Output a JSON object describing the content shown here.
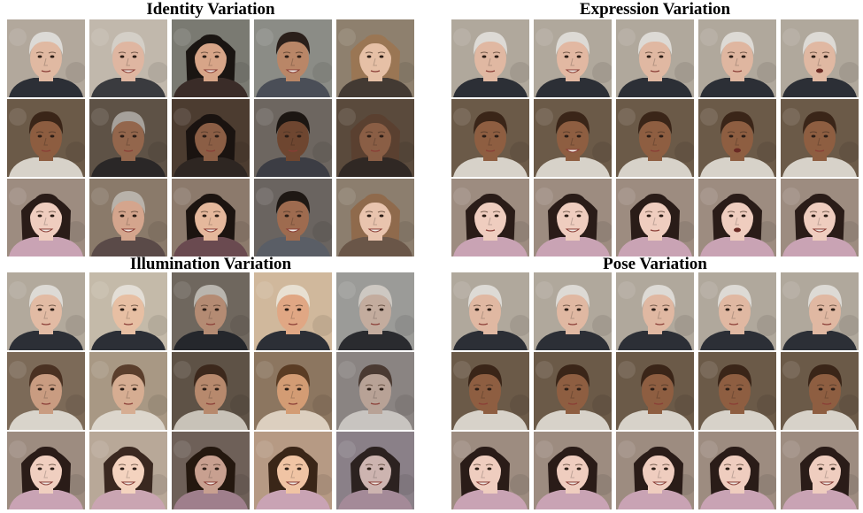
{
  "panels": [
    {
      "id": "identity",
      "title": "Identity Variation",
      "rows": [
        {
          "subject": "older man",
          "faces": [
            {
              "skin": "#e0b9a2",
              "hair": "#dcdad6",
              "bg": "#b2a89c",
              "shirt": "#2c2f36",
              "hairStyle": "short",
              "expr": "neutral"
            },
            {
              "skin": "#dfb6a1",
              "hair": "#d4cfc7",
              "bg": "#c1b8ac",
              "shirt": "#3a3b3f",
              "hairStyle": "short",
              "expr": "smile"
            },
            {
              "skin": "#d7a588",
              "hair": "#1a1512",
              "bg": "#7a7a72",
              "shirt": "#3a2c28",
              "hairStyle": "long",
              "expr": "smile"
            },
            {
              "skin": "#b98667",
              "hair": "#2a1f1a",
              "bg": "#8b8c86",
              "shirt": "#4a4e57",
              "hairStyle": "short",
              "expr": "smile"
            },
            {
              "skin": "#e6c0a6",
              "hair": "#9a7654",
              "bg": "#8e806e",
              "shirt": "#433a33",
              "hairStyle": "long",
              "expr": "neutral"
            }
          ]
        },
        {
          "subject": "young boy",
          "faces": [
            {
              "skin": "#8d5d40",
              "hair": "#3a2518",
              "bg": "#6b5a48",
              "shirt": "#d7d2c9",
              "hairStyle": "short",
              "expr": "neutral"
            },
            {
              "skin": "#93664c",
              "hair": "#a6a19b",
              "bg": "#5e5246",
              "shirt": "#2a2727",
              "hairStyle": "short",
              "expr": "neutral"
            },
            {
              "skin": "#8b5e45",
              "hair": "#1a1310",
              "bg": "#4c3c30",
              "shirt": "#2e2622",
              "hairStyle": "long",
              "expr": "neutral"
            },
            {
              "skin": "#6e4630",
              "hair": "#1c1612",
              "bg": "#6d6660",
              "shirt": "#3c3d44",
              "hairStyle": "short",
              "expr": "neutral"
            },
            {
              "skin": "#8a5e45",
              "hair": "#5a4030",
              "bg": "#5a4a3c",
              "shirt": "#302824",
              "hairStyle": "long",
              "expr": "neutral"
            }
          ]
        },
        {
          "subject": "young woman",
          "faces": [
            {
              "skin": "#efcdbf",
              "hair": "#2a1c18",
              "bg": "#9d8c80",
              "shirt": "#c9a3b4",
              "hairStyle": "long",
              "expr": "smile"
            },
            {
              "skin": "#d4a58d",
              "hair": "#b8b2aa",
              "bg": "#8a7a6a",
              "shirt": "#5a4a48",
              "hairStyle": "short",
              "expr": "smile"
            },
            {
              "skin": "#e5b89c",
              "hair": "#1c1410",
              "bg": "#8c7a6c",
              "shirt": "#6a4a50",
              "hairStyle": "long",
              "expr": "smile"
            },
            {
              "skin": "#9e6b4f",
              "hair": "#1e1814",
              "bg": "#6a6460",
              "shirt": "#5a5e66",
              "hairStyle": "short",
              "expr": "smile"
            },
            {
              "skin": "#e9c4ae",
              "hair": "#8f6a4c",
              "bg": "#8c7e6e",
              "shirt": "#6a5648",
              "hairStyle": "long",
              "expr": "smile"
            }
          ]
        }
      ]
    },
    {
      "id": "expression",
      "title": "Expression Variation",
      "rows": [
        {
          "subject": "older man",
          "faces": [
            {
              "skin": "#e0b8a2",
              "hair": "#dddad5",
              "bg": "#b0a89c",
              "shirt": "#2c2f36",
              "hairStyle": "short",
              "expr": "neutral"
            },
            {
              "skin": "#e2b8a2",
              "hair": "#dddad5",
              "bg": "#b0a89c",
              "shirt": "#2c2f36",
              "hairStyle": "short",
              "expr": "smile"
            },
            {
              "skin": "#e0b8a2",
              "hair": "#dddad5",
              "bg": "#b0a89c",
              "shirt": "#2c2f36",
              "hairStyle": "short",
              "expr": "neutral"
            },
            {
              "skin": "#dfb6a0",
              "hair": "#dddad5",
              "bg": "#b0a89c",
              "shirt": "#2c2f36",
              "hairStyle": "short",
              "expr": "neutral"
            },
            {
              "skin": "#e0b8a2",
              "hair": "#dddad5",
              "bg": "#b0a89c",
              "shirt": "#2c2f36",
              "hairStyle": "short",
              "expr": "open"
            }
          ]
        },
        {
          "subject": "young boy",
          "faces": [
            {
              "skin": "#8e5e41",
              "hair": "#3a2518",
              "bg": "#6b5a48",
              "shirt": "#d7d2c9",
              "hairStyle": "short",
              "expr": "neutral"
            },
            {
              "skin": "#8e5e41",
              "hair": "#3a2518",
              "bg": "#6b5a48",
              "shirt": "#d7d2c9",
              "hairStyle": "short",
              "expr": "smile"
            },
            {
              "skin": "#8e5e41",
              "hair": "#3a2518",
              "bg": "#6b5a48",
              "shirt": "#d7d2c9",
              "hairStyle": "short",
              "expr": "neutral"
            },
            {
              "skin": "#8e5e41",
              "hair": "#3a2518",
              "bg": "#6b5a48",
              "shirt": "#d7d2c9",
              "hairStyle": "short",
              "expr": "open"
            },
            {
              "skin": "#8e5e41",
              "hair": "#3a2518",
              "bg": "#6b5a48",
              "shirt": "#d7d2c9",
              "hairStyle": "short",
              "expr": "neutral"
            }
          ]
        },
        {
          "subject": "young woman",
          "faces": [
            {
              "skin": "#efcdbf",
              "hair": "#2a1c18",
              "bg": "#9d8c80",
              "shirt": "#c9a3b4",
              "hairStyle": "long",
              "expr": "neutral"
            },
            {
              "skin": "#efcdbf",
              "hair": "#2a1c18",
              "bg": "#9d8c80",
              "shirt": "#c9a3b4",
              "hairStyle": "long",
              "expr": "smile"
            },
            {
              "skin": "#efcdbf",
              "hair": "#2a1c18",
              "bg": "#9d8c80",
              "shirt": "#c9a3b4",
              "hairStyle": "long",
              "expr": "neutral"
            },
            {
              "skin": "#efcdbf",
              "hair": "#2a1c18",
              "bg": "#9d8c80",
              "shirt": "#c9a3b4",
              "hairStyle": "long",
              "expr": "open"
            },
            {
              "skin": "#efcdbf",
              "hair": "#2a1c18",
              "bg": "#9d8c80",
              "shirt": "#c9a3b4",
              "hairStyle": "long",
              "expr": "smile"
            }
          ]
        }
      ]
    },
    {
      "id": "illumination",
      "title": "Illumination Variation",
      "rows": [
        {
          "subject": "older man",
          "faces": [
            {
              "skin": "#e2bba4",
              "hair": "#dddad5",
              "bg": "#b2a99c",
              "shirt": "#2c2f36",
              "hairStyle": "short",
              "expr": "neutral"
            },
            {
              "skin": "#e7bfa3",
              "hair": "#e3ded6",
              "bg": "#c4baa9",
              "shirt": "#2c2f36",
              "hairStyle": "short",
              "expr": "neutral"
            },
            {
              "skin": "#b48b73",
              "hair": "#b9b5ae",
              "bg": "#6f675e",
              "shirt": "#25272c",
              "hairStyle": "short",
              "expr": "neutral"
            },
            {
              "skin": "#e0a784",
              "hair": "#e8e0d2",
              "bg": "#d0b89c",
              "shirt": "#2c2f36",
              "hairStyle": "short",
              "expr": "neutral"
            },
            {
              "skin": "#c3ac9e",
              "hair": "#cdc8c2",
              "bg": "#9b9b98",
              "shirt": "#2a2b2f",
              "hairStyle": "short",
              "expr": "neutral"
            }
          ]
        },
        {
          "subject": "young boy",
          "faces": [
            {
              "skin": "#c99c81",
              "hair": "#4a3122",
              "bg": "#7c6a58",
              "shirt": "#d9d4cb",
              "hairStyle": "short",
              "expr": "neutral"
            },
            {
              "skin": "#d6ad92",
              "hair": "#5a3e2c",
              "bg": "#a89884",
              "shirt": "#dcd6cc",
              "hairStyle": "short",
              "expr": "neutral"
            },
            {
              "skin": "#b7896d",
              "hair": "#3c281c",
              "bg": "#5e5246",
              "shirt": "#c8c2b8",
              "hairStyle": "short",
              "expr": "neutral"
            },
            {
              "skin": "#d39c74",
              "hair": "#5a3c24",
              "bg": "#8c7660",
              "shirt": "#dccfbf",
              "hairStyle": "short",
              "expr": "neutral"
            },
            {
              "skin": "#b8a296",
              "hair": "#4a3a32",
              "bg": "#8a8482",
              "shirt": "#c8c4c0",
              "hairStyle": "short",
              "expr": "neutral"
            }
          ]
        },
        {
          "subject": "young woman",
          "faces": [
            {
              "skin": "#f0cfc0",
              "hair": "#2a1c18",
              "bg": "#9d8c80",
              "shirt": "#c9a3b4",
              "hairStyle": "long",
              "expr": "smile"
            },
            {
              "skin": "#f4d3bf",
              "hair": "#3a2820",
              "bg": "#b8a898",
              "shirt": "#caa5b2",
              "hairStyle": "long",
              "expr": "smile"
            },
            {
              "skin": "#c8a090",
              "hair": "#24180f",
              "bg": "#6e6058",
              "shirt": "#9f7f8c",
              "hairStyle": "long",
              "expr": "smile"
            },
            {
              "skin": "#f0c4a4",
              "hair": "#3a2618",
              "bg": "#b69a84",
              "shirt": "#c9a3b4",
              "hairStyle": "long",
              "expr": "smile"
            },
            {
              "skin": "#cdb4b0",
              "hair": "#2c2220",
              "bg": "#8a8088",
              "shirt": "#a48a98",
              "hairStyle": "long",
              "expr": "smile"
            }
          ]
        }
      ]
    },
    {
      "id": "pose",
      "title": "Pose Variation",
      "rows": [
        {
          "subject": "older man",
          "faces": [
            {
              "skin": "#e0b8a2",
              "hair": "#dddad5",
              "bg": "#b0a89c",
              "shirt": "#2c2f36",
              "hairStyle": "short",
              "expr": "neutral",
              "turn": -6
            },
            {
              "skin": "#e0b8a2",
              "hair": "#dddad5",
              "bg": "#b0a89c",
              "shirt": "#2c2f36",
              "hairStyle": "short",
              "expr": "neutral",
              "turn": 0
            },
            {
              "skin": "#e0b8a2",
              "hair": "#dddad5",
              "bg": "#b0a89c",
              "shirt": "#2c2f36",
              "hairStyle": "short",
              "expr": "neutral",
              "turn": 4
            },
            {
              "skin": "#e0b8a2",
              "hair": "#dddad5",
              "bg": "#b0a89c",
              "shirt": "#2c2f36",
              "hairStyle": "short",
              "expr": "neutral",
              "turn": -3
            },
            {
              "skin": "#e0b8a2",
              "hair": "#dddad5",
              "bg": "#b0a89c",
              "shirt": "#2c2f36",
              "hairStyle": "short",
              "expr": "neutral",
              "turn": 6
            }
          ]
        },
        {
          "subject": "young boy",
          "faces": [
            {
              "skin": "#8e5e41",
              "hair": "#3a2518",
              "bg": "#6b5a48",
              "shirt": "#d7d2c9",
              "hairStyle": "short",
              "expr": "neutral",
              "turn": -6
            },
            {
              "skin": "#8e5e41",
              "hair": "#3a2518",
              "bg": "#6b5a48",
              "shirt": "#d7d2c9",
              "hairStyle": "short",
              "expr": "neutral",
              "turn": 0
            },
            {
              "skin": "#8e5e41",
              "hair": "#3a2518",
              "bg": "#6b5a48",
              "shirt": "#d7d2c9",
              "hairStyle": "short",
              "expr": "neutral",
              "turn": 3
            },
            {
              "skin": "#8e5e41",
              "hair": "#3a2518",
              "bg": "#6b5a48",
              "shirt": "#d7d2c9",
              "hairStyle": "short",
              "expr": "neutral",
              "turn": -3
            },
            {
              "skin": "#8e5e41",
              "hair": "#3a2518",
              "bg": "#6b5a48",
              "shirt": "#d7d2c9",
              "hairStyle": "short",
              "expr": "neutral",
              "turn": 6
            }
          ]
        },
        {
          "subject": "young woman",
          "faces": [
            {
              "skin": "#efcdbf",
              "hair": "#2a1c18",
              "bg": "#9d8c80",
              "shirt": "#c9a3b4",
              "hairStyle": "long",
              "expr": "smile",
              "turn": -6
            },
            {
              "skin": "#efcdbf",
              "hair": "#2a1c18",
              "bg": "#9d8c80",
              "shirt": "#c9a3b4",
              "hairStyle": "long",
              "expr": "smile",
              "turn": 0
            },
            {
              "skin": "#efcdbf",
              "hair": "#2a1c18",
              "bg": "#9d8c80",
              "shirt": "#c9a3b4",
              "hairStyle": "long",
              "expr": "smile",
              "turn": 4
            },
            {
              "skin": "#efcdbf",
              "hair": "#2a1c18",
              "bg": "#9d8c80",
              "shirt": "#c9a3b4",
              "hairStyle": "long",
              "expr": "smile",
              "turn": -3
            },
            {
              "skin": "#efcdbf",
              "hair": "#2a1c18",
              "bg": "#9d8c80",
              "shirt": "#c9a3b4",
              "hairStyle": "long",
              "expr": "smile",
              "turn": 6
            }
          ]
        }
      ]
    }
  ]
}
